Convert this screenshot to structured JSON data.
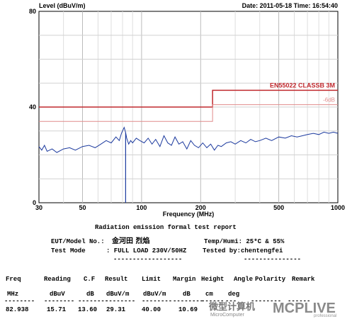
{
  "chart_data": {
    "type": "line",
    "ylabel": "Level (dBuV/m)",
    "xlabel": "Frequency (MHz)",
    "header_right": "Date: 2011-05-18  Time: 16:54:40",
    "x_scale": "log",
    "xlim": [
      30,
      1000
    ],
    "ylim": [
      0,
      80
    ],
    "x_ticks": [
      30,
      50,
      100,
      200,
      500,
      1000
    ],
    "y_ticks": [
      0,
      40,
      80
    ],
    "grid": true,
    "limit_lines": [
      {
        "name": "EN55022 CLASSB 3M",
        "color": "#c0292e",
        "segments": [
          {
            "x": [
              30,
              230
            ],
            "y": 40
          },
          {
            "x": [
              230,
              1000
            ],
            "y": 47
          }
        ]
      },
      {
        "name": "-6dB",
        "color": "#e08c8c",
        "segments": [
          {
            "x": [
              30,
              230
            ],
            "y": 34
          },
          {
            "x": [
              230,
              1000
            ],
            "y": 41
          }
        ]
      }
    ],
    "series": [
      {
        "color": "#1c3a9e",
        "x": [
          30,
          31,
          32,
          33,
          35,
          37,
          40,
          43,
          46,
          50,
          54,
          58,
          62,
          66,
          70,
          74,
          77,
          79,
          80.5,
          81.5,
          82.938,
          84,
          86,
          88,
          90,
          94,
          98,
          103,
          108,
          113,
          118,
          124,
          130,
          136,
          142,
          148,
          155,
          162,
          170,
          178,
          186,
          195,
          205,
          215,
          225,
          235,
          245,
          255,
          270,
          285,
          300,
          320,
          340,
          360,
          380,
          400,
          430,
          460,
          500,
          540,
          580,
          620,
          660,
          700,
          750,
          800,
          850,
          900,
          950,
          1000
        ],
        "y": [
          23.5,
          22,
          24,
          21.5,
          22.5,
          21,
          22.5,
          23,
          22,
          23.5,
          24,
          23,
          24.5,
          26,
          25,
          27.5,
          26,
          29,
          30.5,
          31.5,
          29.3,
          27,
          24.5,
          26,
          25,
          27,
          26,
          25,
          27,
          24.5,
          26.5,
          23.5,
          28,
          25,
          24,
          27.5,
          24.5,
          25.5,
          22.5,
          26,
          24,
          23,
          25,
          23,
          24.5,
          22,
          24,
          23.5,
          25,
          25.5,
          24.5,
          26,
          25,
          26.5,
          25.5,
          26,
          27,
          26,
          27.5,
          27,
          28,
          27.5,
          28,
          28.5,
          29,
          28.5,
          29.5,
          29,
          29.5,
          29
        ]
      }
    ],
    "marker": {
      "x": 82.938,
      "y": [
        0,
        29.31
      ]
    }
  },
  "report": {
    "title": "Radiation emission formal test report",
    "eut_label": "EUT/Model No.:",
    "eut_value": "金河田 烈焰",
    "temp_humi": "Temp/Humi: 25*C & 55%",
    "test_mode_label": "Test Mode",
    "test_mode_value": ": FULL LOAD 230V/50HZ",
    "tested_by": "Tested by:chentengfei",
    "dash_a": "------------------",
    "dash_b": "---------------",
    "columns": [
      "Freq",
      "Reading",
      "C.F",
      "Result",
      "Limit",
      "Margin",
      "Height",
      "Angle",
      "Polarity",
      "Remark"
    ],
    "units": [
      "MHz",
      "dBuV",
      "dB",
      "dBuV/m",
      "dBuV/m",
      "dB",
      "cm",
      "deg"
    ],
    "unit_dashes": [
      "--------",
      "--------",
      "--------",
      "--------",
      "--------",
      "--------",
      "------",
      "---",
      "--------",
      "------"
    ],
    "rows": [
      [
        "82.938",
        "15.71",
        "13.60",
        "29.31",
        "40.00",
        "10.69"
      ]
    ]
  },
  "watermark": {
    "cn": "微型计算机",
    "en": "MicroComputer",
    "logo": "MCPLIVE",
    "logo_sub": "professional"
  }
}
